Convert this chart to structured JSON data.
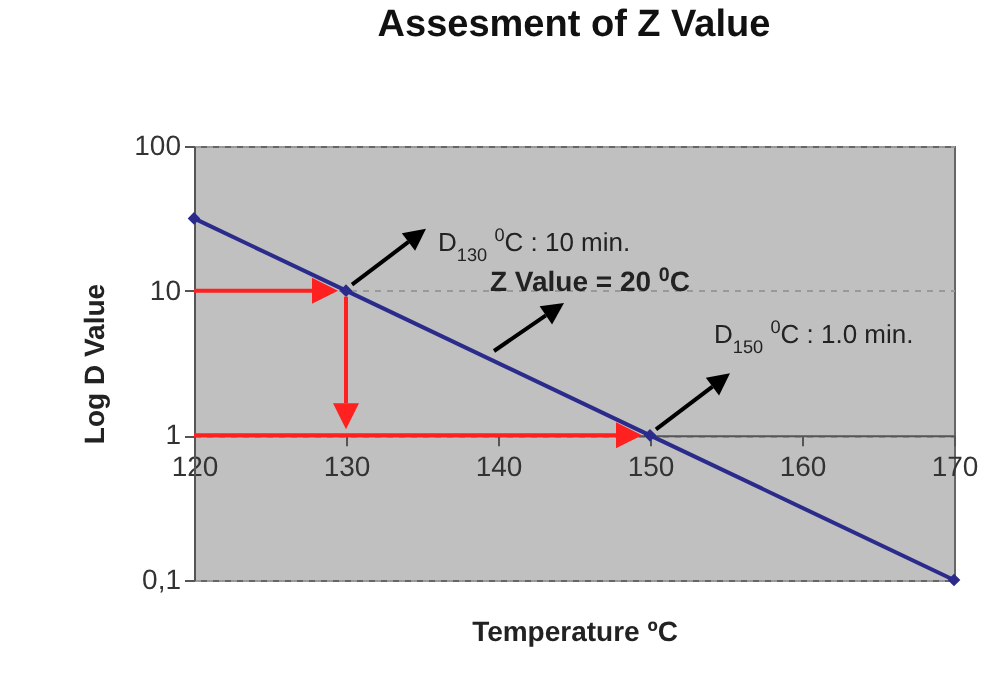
{
  "chart_data": {
    "type": "line",
    "title": "Assesment of Z Value",
    "xlabel": "Temperature ºC",
    "ylabel": "Log D Value",
    "x": [
      120,
      130,
      150,
      170
    ],
    "series": [
      {
        "color": "#2b2b8c",
        "values": [
          31.6,
          10,
          1,
          0.1
        ]
      }
    ],
    "xlim": [
      120,
      170
    ],
    "xticks": [
      120,
      130,
      140,
      150,
      160,
      170
    ],
    "ylim": [
      0.1,
      100
    ],
    "yticks": [
      {
        "value": 0.1,
        "label": "0,1"
      },
      1,
      10,
      100
    ],
    "log": true,
    "grid": "y",
    "marker": "diamond",
    "line_style": "solid",
    "annotations": [
      {
        "text": "D$_{130}$ $^{0}$C : 10 min.",
        "x": 130,
        "y": 10
      },
      "Z Value = 20 $^{0}$C",
      {
        "text": "D$_{150}$ $^{0}$C : 1.0 min.",
        "x": 150,
        "y": 1
      }
    ]
  }
}
